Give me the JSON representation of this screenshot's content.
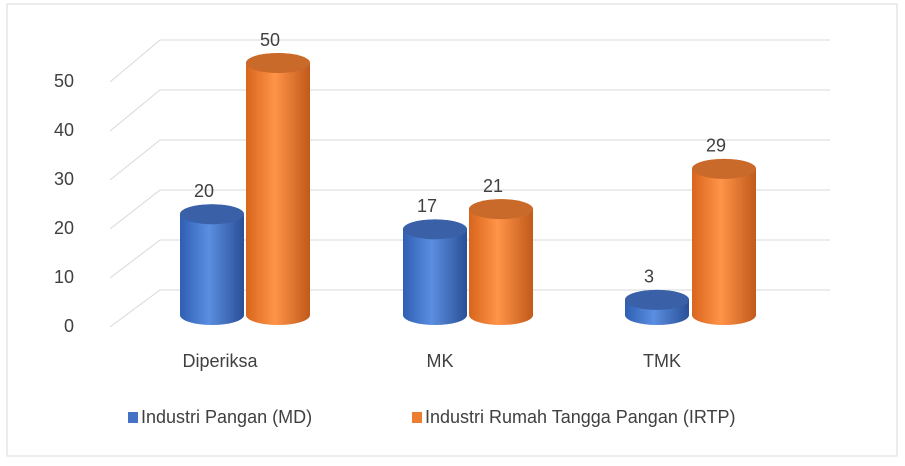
{
  "chart_data": {
    "type": "bar",
    "categories": [
      "Diperiksa",
      "MK",
      "TMK"
    ],
    "series": [
      {
        "name": "Industri Pangan (MD)",
        "color": "#4472c4",
        "values": [
          20,
          17,
          3
        ]
      },
      {
        "name": "Industri Rumah Tangga Pangan (IRTP)",
        "color": "#ed7d31",
        "values": [
          50,
          21,
          29
        ]
      }
    ],
    "ylim": [
      0,
      50
    ],
    "yticks": [
      0,
      10,
      20,
      30,
      40,
      50
    ],
    "grid": true,
    "legend": "bottom"
  }
}
